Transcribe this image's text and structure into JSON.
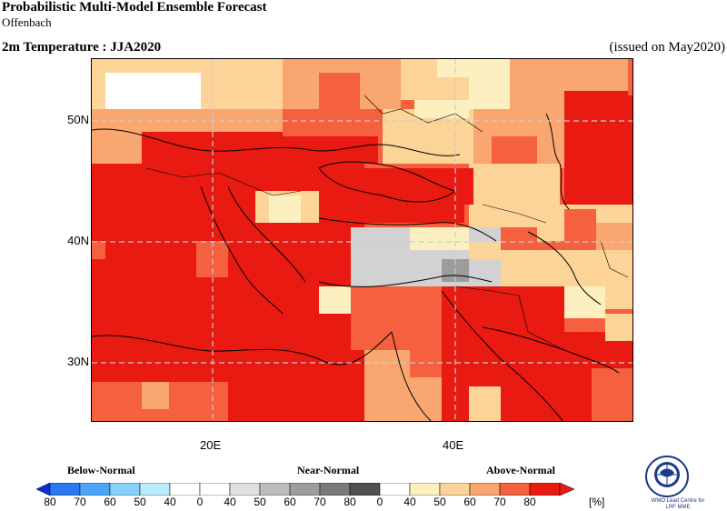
{
  "header": {
    "title": "Probabilistic Multi-Model Ensemble Forecast",
    "subtitle": "Offenbach",
    "variable": "2m Temperature : JJA2020",
    "issued": "(issued on May2020)"
  },
  "map": {
    "lat_ticks": [
      "50N",
      "40N",
      "30N"
    ],
    "lon_ticks": [
      "20E",
      "40E"
    ],
    "lon_range": [
      10,
      55
    ],
    "lat_range": [
      25,
      55
    ]
  },
  "legend": {
    "categories": {
      "below": "Below-Normal",
      "near": "Near-Normal",
      "above": "Above-Normal"
    },
    "labels": [
      "80",
      "70",
      "60",
      "50",
      "40",
      "0",
      "40",
      "50",
      "60",
      "70",
      "80",
      "0",
      "40",
      "50",
      "60",
      "70",
      "80"
    ],
    "unit": "[%]",
    "colors": [
      "#0a2fd8",
      "#2a78f0",
      "#4aa6f8",
      "#86d2fa",
      "#b8eefc",
      "#ffffff",
      "#e0e0e0",
      "#bdbdbd",
      "#9c9c9c",
      "#7a7a7a",
      "#505050",
      "#fdf0c0",
      "#fdd497",
      "#f9a670",
      "#f5603e",
      "#e81a12"
    ]
  },
  "logo": {
    "name": "wmo-logo",
    "text_line1": "WMO Lead Centre for",
    "text_line2": "LRF MME"
  }
}
